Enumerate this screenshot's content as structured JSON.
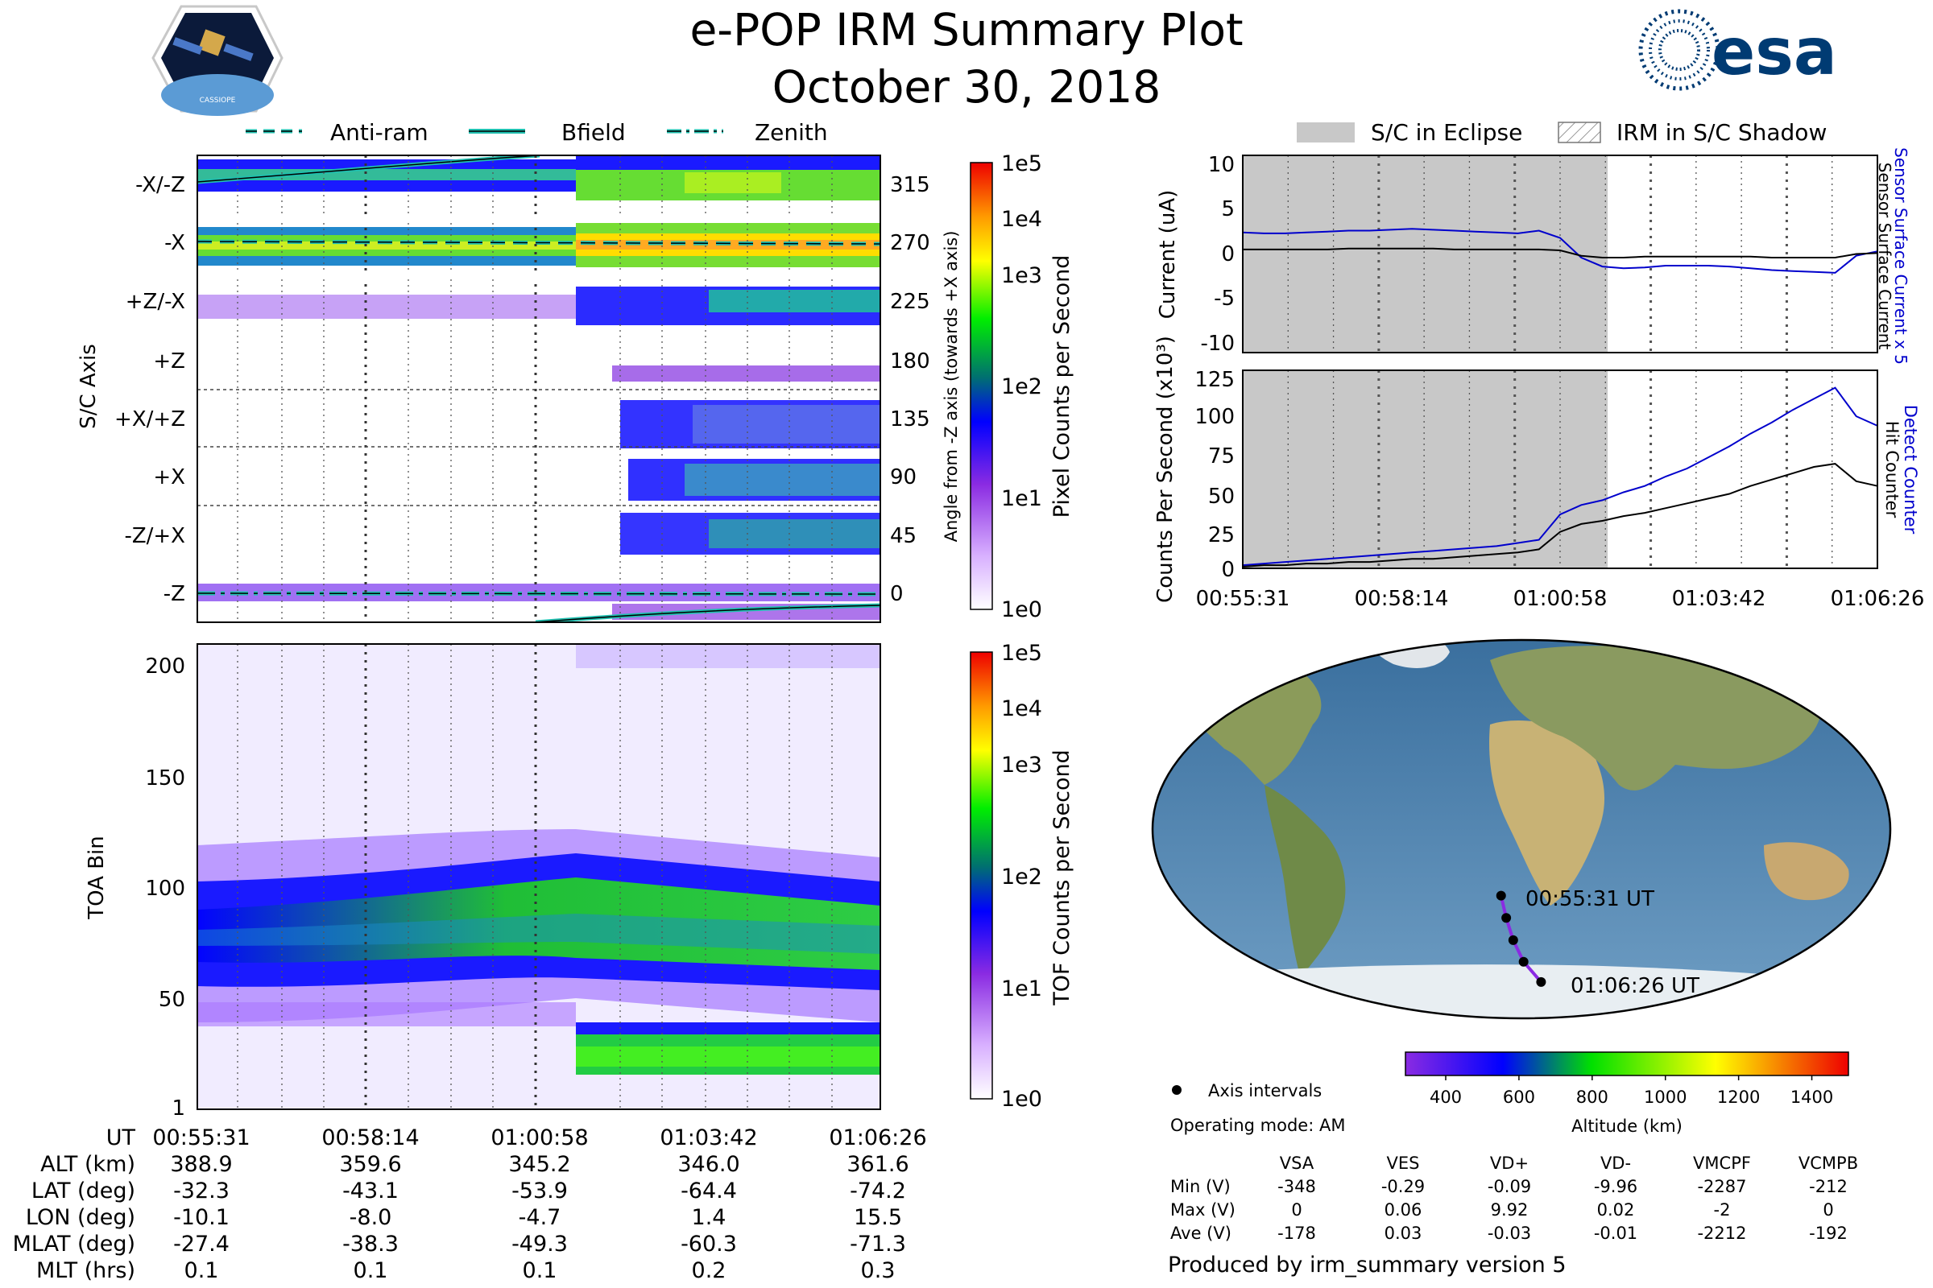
{
  "header": {
    "title": "e-POP IRM Summary Plot",
    "date": "October 30, 2018",
    "mission_logo_text": "CASSIOPE",
    "agency_logo_text": "esa"
  },
  "colors": {
    "brand": "#003B73",
    "cyan": "#20C0B0",
    "blue": "#0000CC",
    "eclipse": "#C8C8C8"
  },
  "chart_data": [
    {
      "type": "heatmap",
      "name": "pixel-angle-spectrogram",
      "legend": [
        "Anti-ram",
        "Bfield",
        "Zenith"
      ],
      "ylabel": "S/C Axis",
      "y2label": "Angle from -Z axis (towards +X axis)",
      "y_axis_labels": [
        "-X/-Z",
        "-X",
        "+Z/-X",
        "+Z",
        "+X/+Z",
        "+X",
        "-Z/+X",
        "-Z"
      ],
      "y2_tick_labels": [
        "315",
        "270",
        "225",
        "180",
        "135",
        "90",
        "45",
        "0"
      ],
      "colorbar_label": "Pixel Counts per Second",
      "colorbar_ticks": [
        "1e0",
        "1e1",
        "1e2",
        "1e3",
        "1e4",
        "1e5"
      ]
    },
    {
      "type": "heatmap",
      "name": "toa-spectrogram",
      "ylabel": "TOA Bin",
      "y_tick_labels": [
        "1",
        "50",
        "100",
        "150",
        "200"
      ],
      "ylim": [
        1,
        210
      ],
      "colorbar_label": "TOF Counts per Second",
      "colorbar_ticks": [
        "1e0",
        "1e1",
        "1e2",
        "1e3",
        "1e4",
        "1e5"
      ]
    },
    {
      "type": "line",
      "name": "surface-current",
      "legend": [
        "S/C in Eclipse",
        "IRM in S/C Shadow"
      ],
      "ylabel": "Current (uA)",
      "y2label_blue": "Sensor Surface Current x 5",
      "y2label_black": "Sensor Surface Current",
      "ylim": [
        -11,
        11
      ],
      "y_tick_labels": [
        "10",
        "5",
        "0",
        "-5",
        "-10"
      ],
      "eclipse_fraction": [
        0,
        0.575
      ],
      "series": [
        {
          "name": "Sensor Surface Current x 5",
          "color": "#0000CC",
          "values": [
            2.4,
            2.3,
            2.3,
            2.4,
            2.5,
            2.6,
            2.6,
            2.7,
            2.8,
            2.7,
            2.6,
            2.5,
            2.4,
            2.3,
            2.6,
            1.8,
            -0.4,
            -1.4,
            -1.6,
            -1.5,
            -1.3,
            -1.3,
            -1.3,
            -1.4,
            -1.6,
            -1.8,
            -1.9,
            -2.0,
            -2.1,
            -0.2,
            0.3
          ]
        },
        {
          "name": "Sensor Surface Current",
          "color": "#000000",
          "values": [
            0.5,
            0.5,
            0.5,
            0.5,
            0.5,
            0.6,
            0.6,
            0.6,
            0.6,
            0.6,
            0.5,
            0.5,
            0.5,
            0.5,
            0.5,
            0.4,
            -0.2,
            -0.4,
            -0.4,
            -0.3,
            -0.3,
            -0.3,
            -0.3,
            -0.3,
            -0.3,
            -0.4,
            -0.4,
            -0.4,
            -0.4,
            0.0,
            0.1
          ]
        }
      ]
    },
    {
      "type": "line",
      "name": "counts-per-second",
      "ylabel": "Counts Per Second (x10³)",
      "y2label_blue": "Detect Counter",
      "y2label_black": "Hit Counter",
      "ylim": [
        0,
        125
      ],
      "y_tick_labels": [
        "125",
        "100",
        "75",
        "50",
        "25",
        "0"
      ],
      "x_tick_labels": [
        "00:55:31",
        "00:58:14",
        "01:00:58",
        "01:03:42",
        "01:06:26"
      ],
      "eclipse_fraction": [
        0,
        0.575
      ],
      "series": [
        {
          "name": "Detect Counter",
          "color": "#0000CC",
          "values": [
            2,
            3,
            4,
            5,
            6,
            7,
            8,
            9,
            10,
            11,
            12,
            13,
            14,
            16,
            18,
            34,
            40,
            43,
            48,
            52,
            58,
            63,
            70,
            77,
            85,
            92,
            100,
            107,
            114,
            96,
            90
          ]
        },
        {
          "name": "Hit Counter",
          "color": "#000000",
          "values": [
            1,
            2,
            2,
            3,
            3,
            4,
            4,
            5,
            6,
            6,
            7,
            8,
            9,
            10,
            12,
            23,
            28,
            30,
            33,
            35,
            38,
            41,
            44,
            47,
            52,
            56,
            60,
            64,
            66,
            55,
            52
          ]
        }
      ]
    },
    {
      "type": "scatter",
      "name": "orbit-map",
      "start_label": "00:55:31 UT",
      "end_label": "01:06:26 UT",
      "track": [
        {
          "lon": -10.1,
          "lat": -32.3
        },
        {
          "lon": -8.0,
          "lat": -43.1
        },
        {
          "lon": -4.7,
          "lat": -53.9
        },
        {
          "lon": 1.4,
          "lat": -64.4
        },
        {
          "lon": 15.5,
          "lat": -74.2
        }
      ],
      "altitude_colorbar_label": "Altitude (km)",
      "altitude_ticks": [
        "400",
        "600",
        "800",
        "1000",
        "1200",
        "1400"
      ],
      "altitude_range": [
        290,
        1500
      ]
    }
  ],
  "time_table": {
    "headers": [
      "UT",
      "ALT (km)",
      "LAT (deg)",
      "LON (deg)",
      "MLAT (deg)",
      "MLT (hrs)"
    ],
    "columns": [
      [
        "00:55:31",
        "388.9",
        "-32.3",
        "-10.1",
        "-27.4",
        "0.1"
      ],
      [
        "00:58:14",
        "359.6",
        "-43.1",
        "-8.0",
        "-38.3",
        "0.1"
      ],
      [
        "01:00:58",
        "345.2",
        "-53.9",
        "-4.7",
        "-49.3",
        "0.1"
      ],
      [
        "01:03:42",
        "346.0",
        "-64.4",
        "1.4",
        "-60.3",
        "0.2"
      ],
      [
        "01:06:26",
        "361.6",
        "-74.2",
        "15.5",
        "-71.3",
        "0.3"
      ]
    ]
  },
  "info": {
    "axis_intervals_label": "Axis intervals",
    "operating_mode": "Operating mode: AM",
    "produced_by": "Produced by irm_summary version 5"
  },
  "voltage_table": {
    "headers": [
      "VSA",
      "VES",
      "VD+",
      "VD-",
      "VMCPF",
      "VCMPB"
    ],
    "rows": [
      {
        "label": "Min (V)",
        "values": [
          "-348",
          "-0.29",
          "-0.09",
          "-9.96",
          "-2287",
          "-212"
        ]
      },
      {
        "label": "Max (V)",
        "values": [
          "0",
          "0.06",
          "9.92",
          "0.02",
          "-2",
          "0"
        ]
      },
      {
        "label": "Ave (V)",
        "values": [
          "-178",
          "0.03",
          "-0.03",
          "-0.01",
          "-2212",
          "-192"
        ]
      }
    ]
  }
}
